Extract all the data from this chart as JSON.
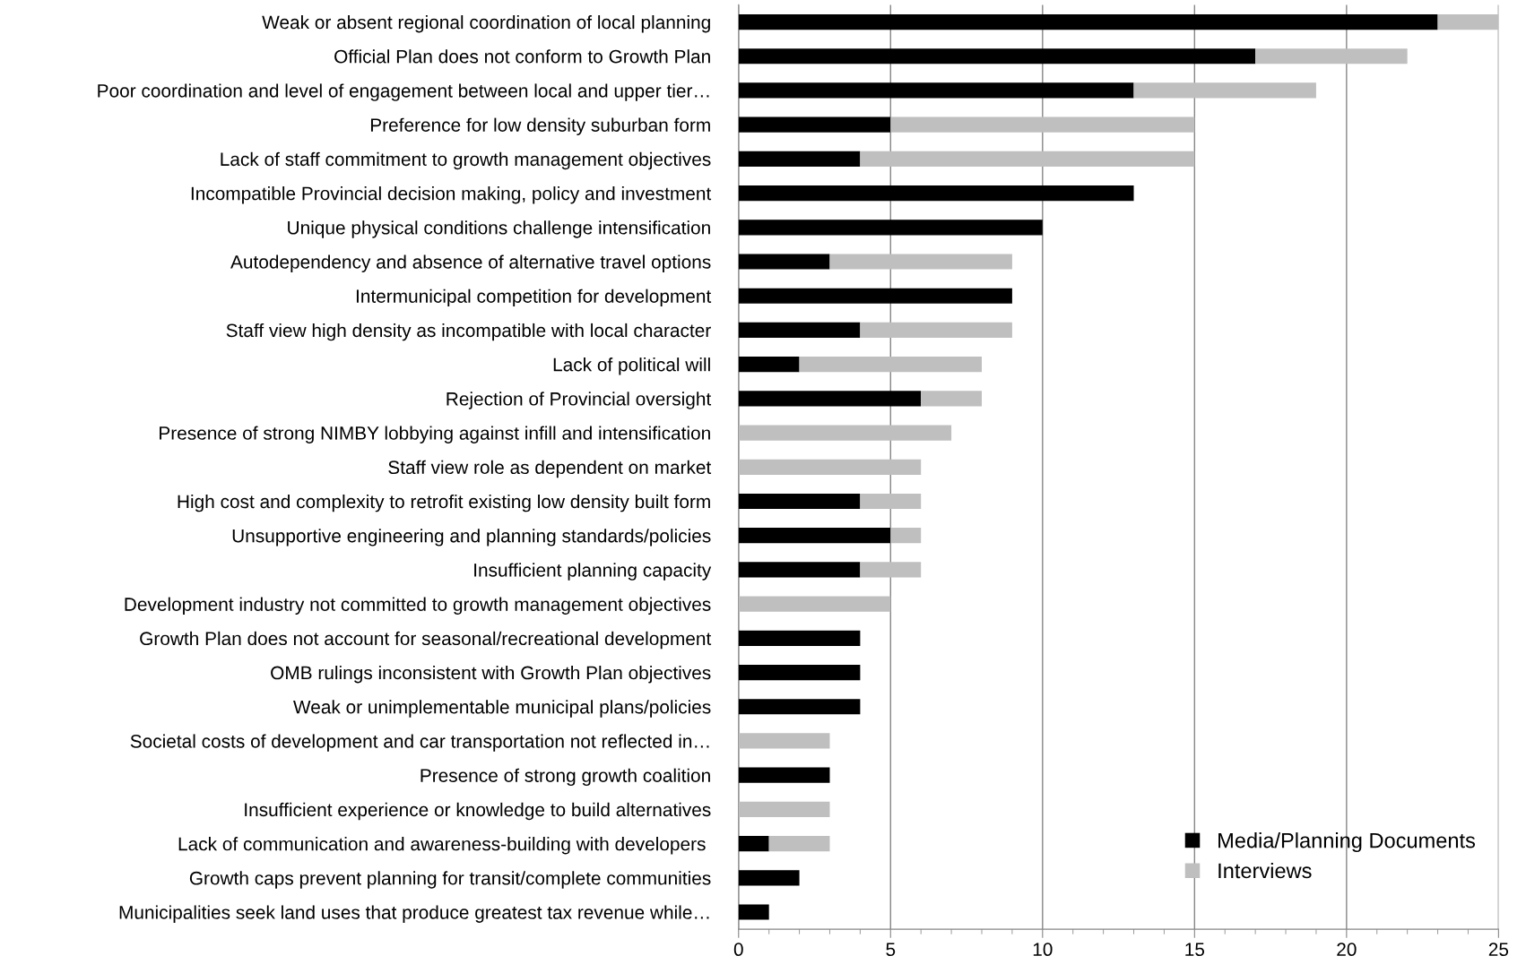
{
  "chart_data": {
    "type": "bar",
    "orientation": "horizontal",
    "stacked": true,
    "categories": [
      "Weak or absent regional coordination of local planning",
      "Official Plan does not conform to Growth Plan",
      "Poor coordination and level of engagement between local and upper tier…",
      "Preference for low density suburban form",
      "Lack of staff commitment to growth management objectives",
      "Incompatible Provincial decision making, policy and investment",
      "Unique physical conditions challenge intensification",
      "Autodependency and absence of alternative travel options",
      "Intermunicipal competition for development",
      "Staff view high density as incompatible with local character",
      "Lack of political will",
      "Rejection of Provincial oversight",
      "Presence of strong NIMBY lobbying against infill and intensification",
      "Staff view role as dependent on market",
      "High cost and complexity to retrofit existing low density built form",
      "Unsupportive engineering and planning standards/policies",
      "Insufficient planning capacity",
      "Development industry not committed to growth management objectives",
      "Growth Plan does not account for seasonal/recreational development",
      "OMB rulings inconsistent with Growth Plan objectives",
      "Weak or unimplementable municipal plans/policies",
      "Societal costs of development and car transportation not reflected in…",
      "Presence of strong growth coalition",
      "Insufficient experience or knowledge to build alternatives",
      "Lack of communication and awareness-building with developers ",
      "Growth caps prevent planning for transit/complete communities",
      "Municipalities seek land uses that produce greatest tax revenue while…"
    ],
    "series": [
      {
        "name": "Media/Planning Documents",
        "color": "#000000",
        "values": [
          23,
          17,
          13,
          5,
          4,
          13,
          10,
          3,
          9,
          4,
          2,
          6,
          0,
          0,
          4,
          5,
          4,
          0,
          4,
          4,
          4,
          0,
          3,
          0,
          1,
          2,
          1
        ]
      },
      {
        "name": "Interviews",
        "color": "#bfbfbf",
        "values": [
          2,
          5,
          6,
          10,
          11,
          0,
          0,
          6,
          0,
          5,
          6,
          2,
          7,
          6,
          2,
          1,
          2,
          5,
          0,
          0,
          0,
          3,
          0,
          3,
          2,
          0,
          0
        ]
      }
    ],
    "xlim": [
      0,
      25
    ],
    "xticks": [
      0,
      5,
      10,
      15,
      20,
      25
    ],
    "grid": "x",
    "legend": "bottom right"
  }
}
